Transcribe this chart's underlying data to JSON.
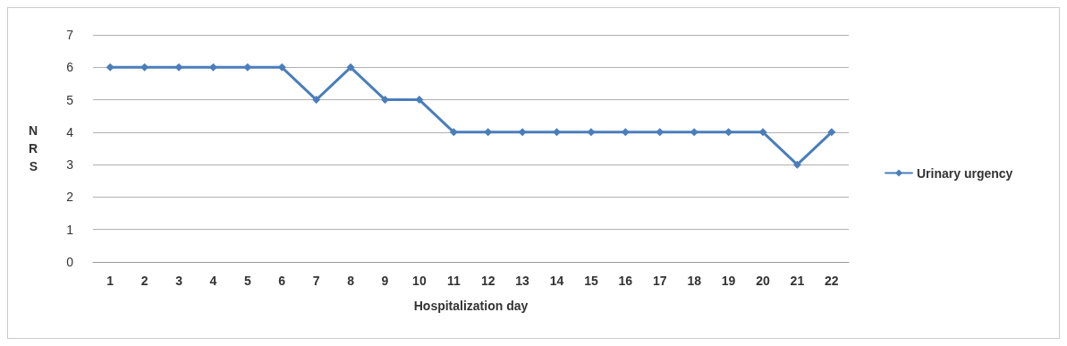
{
  "chart_data": {
    "type": "line",
    "xlabel": "Hospitalization day",
    "ylabel": "NRS",
    "categories": [
      "1",
      "2",
      "3",
      "4",
      "5",
      "6",
      "7",
      "8",
      "9",
      "10",
      "11",
      "12",
      "13",
      "14",
      "15",
      "16",
      "17",
      "18",
      "19",
      "20",
      "21",
      "22"
    ],
    "series": [
      {
        "name": "Urinary urgency",
        "color": "#4a7ebb",
        "values": [
          6,
          6,
          6,
          6,
          6,
          6,
          5,
          6,
          5,
          5,
          4,
          4,
          4,
          4,
          4,
          4,
          4,
          4,
          4,
          4,
          3,
          4
        ]
      }
    ],
    "ylim": [
      0,
      7
    ],
    "yticks": [
      0,
      1,
      2,
      3,
      4,
      5,
      6,
      7
    ],
    "grid": "y",
    "legend": "right",
    "marker": "diamond",
    "line_style": "solid"
  }
}
